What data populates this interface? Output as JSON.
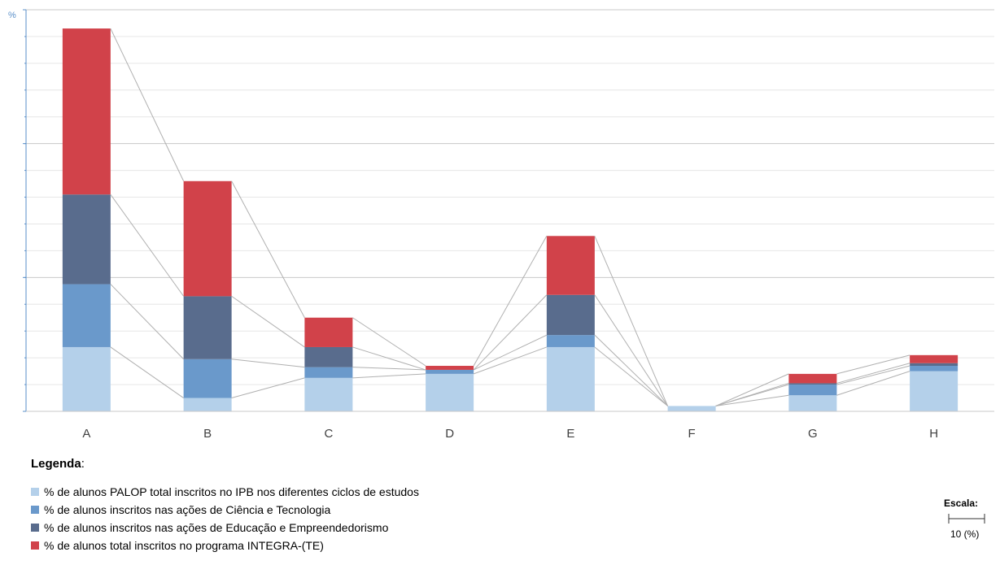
{
  "chart_data": {
    "type": "bar",
    "stacked": true,
    "y_axis_label": "%",
    "categories": [
      "A",
      "B",
      "C",
      "D",
      "E",
      "F",
      "G",
      "H"
    ],
    "ylim": [
      0,
      30
    ],
    "major_ticks": [
      0,
      10,
      20,
      30
    ],
    "grid": true,
    "series_lines": true,
    "series": [
      {
        "name": "% de alunos PALOP total inscritos no IPB nos diferentes ciclos de estudos",
        "color": "#b4d0ea",
        "values": [
          4.8,
          1.0,
          2.5,
          2.8,
          4.8,
          0.4,
          1.2,
          3.0
        ]
      },
      {
        "name": "% de alunos inscritos nas ações de Ciência e Tecnologia",
        "color": "#6a99cb",
        "values": [
          4.7,
          2.9,
          0.8,
          0.3,
          0.9,
          0.0,
          0.8,
          0.4
        ]
      },
      {
        "name": "% de alunos inscritos nas ações de Educação e Empreendedorismo",
        "color": "#596c8d",
        "values": [
          6.7,
          4.7,
          1.5,
          0.0,
          3.0,
          0.0,
          0.1,
          0.2
        ]
      },
      {
        "name": "% de alunos total inscritos no programa INTEGRA-(TE)",
        "color": "#d1424a",
        "values": [
          12.4,
          8.6,
          2.2,
          0.3,
          4.4,
          0.0,
          0.7,
          0.6
        ]
      }
    ]
  },
  "legend": {
    "title": "Legenda",
    "title_suffix": ":",
    "items": [
      {
        "label": "% de alunos PALOP total inscritos no IPB nos diferentes ciclos de estudos",
        "color": "#b4d0ea"
      },
      {
        "label": "% de alunos inscritos nas ações de Ciência e Tecnologia",
        "color": "#6a99cb"
      },
      {
        "label": "% de alunos inscritos nas ações de Educação e Empreendedorismo",
        "color": "#596c8d"
      },
      {
        "label": "% de alunos total inscritos no programa INTEGRA-(TE)",
        "color": "#d1424a"
      }
    ]
  },
  "scale": {
    "title": "Escala:",
    "value": "10 (%)"
  }
}
